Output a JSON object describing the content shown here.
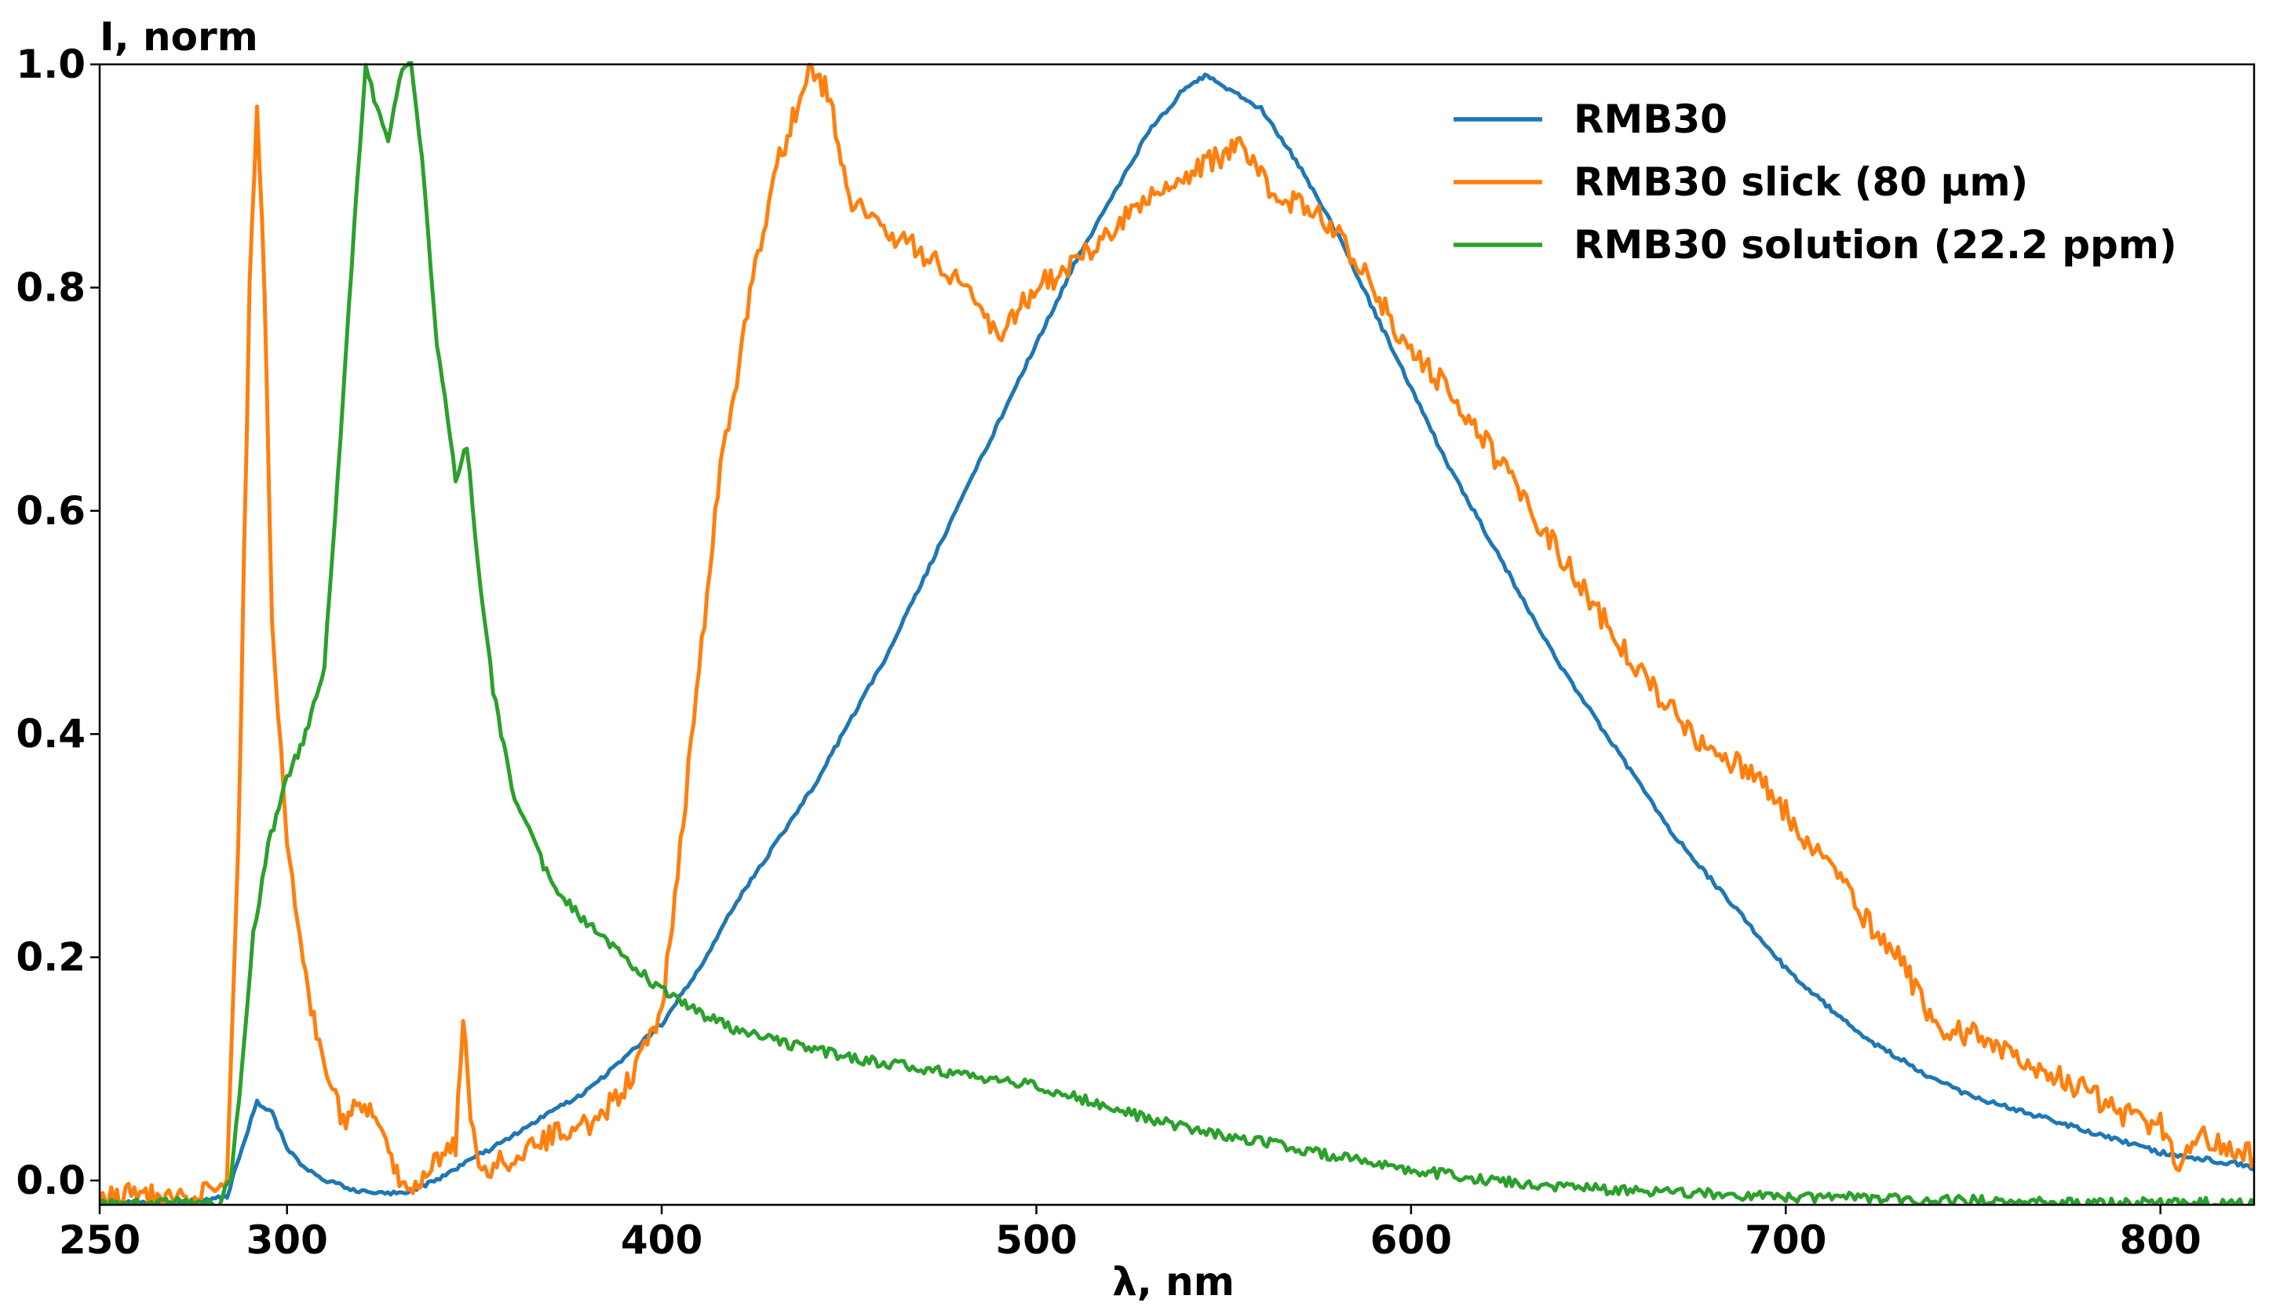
{
  "chart_data": {
    "type": "line",
    "xlabel": "λ, nm",
    "ylabel": "I, norm",
    "xlim": [
      250,
      825
    ],
    "ylim": [
      -0.02,
      1.0
    ],
    "xticks": [
      250,
      300,
      400,
      500,
      600,
      700,
      800
    ],
    "yticks": [
      0.0,
      0.2,
      0.4,
      0.6,
      0.8,
      1.0
    ],
    "xtick_labels": [
      "250",
      "300",
      "400",
      "500",
      "600",
      "700",
      "800"
    ],
    "ytick_labels": [
      "0.0",
      "0.2",
      "0.4",
      "0.6",
      "0.8",
      "1.0"
    ],
    "grid": false,
    "legend_position": "top-right",
    "series": [
      {
        "name": "RMB30",
        "color": "#1f77b4",
        "x": [
          250,
          270,
          284,
          288,
          292,
          296,
          300,
          305,
          310,
          320,
          330,
          340,
          350,
          360,
          370,
          380,
          390,
          400,
          410,
          420,
          430,
          440,
          450,
          460,
          470,
          480,
          490,
          500,
          510,
          520,
          530,
          540,
          545,
          550,
          560,
          570,
          580,
          590,
          600,
          610,
          620,
          630,
          640,
          650,
          660,
          670,
          680,
          690,
          700,
          710,
          720,
          730,
          740,
          750,
          760,
          770,
          780,
          790,
          800,
          810,
          820,
          825
        ],
        "y": [
          -0.02,
          -0.02,
          -0.015,
          0.03,
          0.07,
          0.06,
          0.03,
          0.01,
          0.0,
          -0.01,
          -0.012,
          0.0,
          0.02,
          0.04,
          0.06,
          0.08,
          0.11,
          0.14,
          0.19,
          0.25,
          0.3,
          0.35,
          0.41,
          0.47,
          0.54,
          0.61,
          0.68,
          0.75,
          0.82,
          0.88,
          0.94,
          0.98,
          0.99,
          0.98,
          0.96,
          0.91,
          0.85,
          0.78,
          0.71,
          0.64,
          0.58,
          0.52,
          0.46,
          0.41,
          0.36,
          0.31,
          0.27,
          0.23,
          0.19,
          0.16,
          0.13,
          0.11,
          0.09,
          0.075,
          0.065,
          0.055,
          0.045,
          0.035,
          0.025,
          0.02,
          0.015,
          0.01
        ]
      },
      {
        "name": "RMB30 slick (80 μm)",
        "color": "#ff7f0e",
        "x": [
          250,
          260,
          270,
          280,
          284,
          287,
          290,
          292,
          294,
          296,
          300,
          305,
          310,
          315,
          320,
          325,
          330,
          335,
          340,
          345,
          347,
          349,
          352,
          360,
          370,
          380,
          390,
          400,
          405,
          410,
          415,
          420,
          425,
          430,
          435,
          440,
          445,
          450,
          460,
          470,
          480,
          490,
          495,
          500,
          510,
          520,
          530,
          540,
          550,
          555,
          560,
          565,
          570,
          580,
          590,
          600,
          610,
          620,
          630,
          640,
          650,
          660,
          670,
          680,
          690,
          700,
          705,
          710,
          720,
          730,
          740,
          750,
          760,
          770,
          780,
          790,
          800,
          805,
          810,
          820,
          825
        ],
        "y": [
          -0.02,
          -0.01,
          -0.02,
          -0.01,
          0.0,
          0.3,
          0.8,
          0.96,
          0.8,
          0.5,
          0.3,
          0.18,
          0.1,
          0.05,
          0.07,
          0.05,
          0.0,
          -0.01,
          0.02,
          0.03,
          0.15,
          0.05,
          0.01,
          0.02,
          0.04,
          0.05,
          0.08,
          0.15,
          0.3,
          0.46,
          0.62,
          0.72,
          0.82,
          0.9,
          0.95,
          1.0,
          0.97,
          0.88,
          0.85,
          0.83,
          0.8,
          0.76,
          0.78,
          0.8,
          0.82,
          0.85,
          0.88,
          0.9,
          0.92,
          0.93,
          0.9,
          0.87,
          0.88,
          0.85,
          0.8,
          0.74,
          0.71,
          0.66,
          0.61,
          0.56,
          0.51,
          0.46,
          0.42,
          0.38,
          0.37,
          0.33,
          0.3,
          0.29,
          0.24,
          0.2,
          0.14,
          0.13,
          0.11,
          0.1,
          0.08,
          0.06,
          0.05,
          0.01,
          0.04,
          0.03,
          0.02
        ]
      },
      {
        "name": "RMB30 solution (22.2 ppm)",
        "color": "#2ca02c",
        "x": [
          250,
          270,
          282,
          285,
          288,
          291,
          295,
          300,
          305,
          310,
          315,
          318,
          321,
          324,
          327,
          330,
          333,
          336,
          340,
          345,
          348,
          351,
          355,
          360,
          370,
          380,
          390,
          400,
          410,
          420,
          430,
          440,
          450,
          460,
          470,
          480,
          490,
          500,
          510,
          520,
          530,
          540,
          550,
          560,
          570,
          580,
          590,
          600,
          620,
          640,
          660,
          680,
          700,
          720,
          740,
          760,
          780,
          800,
          825
        ],
        "y": [
          -0.02,
          -0.02,
          -0.02,
          0.0,
          0.1,
          0.22,
          0.3,
          0.36,
          0.4,
          0.46,
          0.7,
          0.86,
          1.0,
          0.96,
          0.93,
          0.99,
          1.0,
          0.92,
          0.75,
          0.63,
          0.66,
          0.55,
          0.44,
          0.35,
          0.27,
          0.23,
          0.2,
          0.17,
          0.15,
          0.135,
          0.125,
          0.118,
          0.11,
          0.105,
          0.1,
          0.095,
          0.09,
          0.085,
          0.075,
          0.065,
          0.055,
          0.048,
          0.04,
          0.035,
          0.028,
          0.022,
          0.015,
          0.01,
          0.0,
          -0.005,
          -0.01,
          -0.012,
          -0.015,
          -0.015,
          -0.018,
          -0.018,
          -0.02,
          -0.02,
          -0.02
        ]
      }
    ]
  }
}
